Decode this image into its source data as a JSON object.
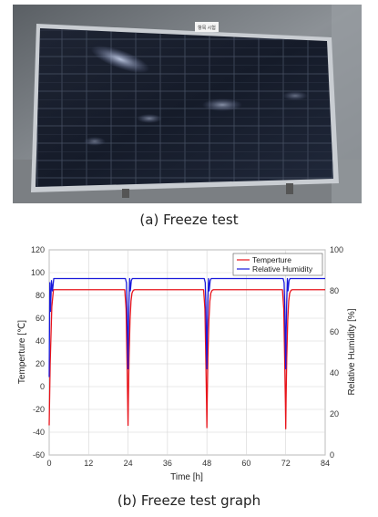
{
  "photo": {
    "panel_sign": "항목 시험"
  },
  "captions": {
    "a": "(a) Freeze test",
    "b": "(b) Freeze test graph"
  },
  "colors": {
    "temperature": "#e8141b",
    "humidity": "#1a1adb"
  },
  "chart_data": {
    "type": "line",
    "xlabel": "Time [h]",
    "ylabel_left": "Temperture [℃]",
    "ylabel_right": "Relative Humidity [%]",
    "xlim": [
      0,
      84
    ],
    "ylim_left": [
      -60,
      120
    ],
    "ylim_right": [
      0,
      100
    ],
    "xticks": [
      0,
      12,
      24,
      36,
      48,
      60,
      72,
      84
    ],
    "yticks_left": [
      -60,
      -40,
      -20,
      0,
      20,
      40,
      60,
      80,
      100,
      120
    ],
    "yticks_right": [
      0,
      20,
      40,
      60,
      80,
      100
    ],
    "grid": true,
    "legend_position": "top-right",
    "series": [
      {
        "name": "Temperture",
        "axis": "left",
        "color": "#e8141b",
        "x": [
          0,
          0.3,
          0.8,
          1.3,
          23.0,
          23.4,
          23.7,
          23.9,
          24.0,
          24.1,
          24.3,
          24.6,
          24.9,
          25.2,
          25.6,
          26.0,
          47.0,
          47.4,
          47.7,
          47.9,
          48.0,
          48.1,
          48.3,
          48.6,
          48.9,
          49.2,
          49.6,
          50.0,
          71.0,
          71.4,
          71.7,
          71.9,
          72.0,
          72.1,
          72.3,
          72.6,
          72.9,
          73.2,
          73.6,
          74.0,
          84
        ],
        "y": [
          -34,
          20,
          70,
          85,
          85,
          68,
          20,
          -15,
          -34,
          -12,
          25,
          58,
          75,
          82,
          84.5,
          85,
          85,
          68,
          20,
          -15,
          -36,
          -12,
          25,
          58,
          75,
          82,
          84.5,
          85,
          85,
          68,
          20,
          -15,
          -37,
          -12,
          25,
          58,
          75,
          82,
          84.5,
          85,
          85
        ]
      },
      {
        "name": "Relative Humidity",
        "axis": "right",
        "color": "#1a1adb",
        "x": [
          0,
          0.2,
          0.4,
          0.7,
          1.0,
          1.4,
          23.2,
          23.5,
          23.7,
          23.9,
          24.0,
          24.1,
          24.3,
          24.5,
          24.7,
          25.0,
          25.3,
          47.2,
          47.5,
          47.7,
          47.9,
          48.0,
          48.1,
          48.3,
          48.5,
          48.7,
          49.0,
          49.3,
          71.2,
          71.5,
          71.7,
          71.9,
          72.0,
          72.1,
          72.3,
          72.5,
          72.7,
          73.0,
          73.3,
          84
        ],
        "y": [
          38,
          84,
          70,
          85,
          80,
          86,
          86,
          84,
          72,
          50,
          42,
          58,
          75,
          86,
          80,
          85,
          86,
          86,
          84,
          72,
          50,
          42,
          58,
          75,
          86,
          80,
          85,
          86,
          86,
          84,
          72,
          50,
          42,
          58,
          75,
          86,
          80,
          85,
          86,
          86
        ]
      }
    ]
  }
}
